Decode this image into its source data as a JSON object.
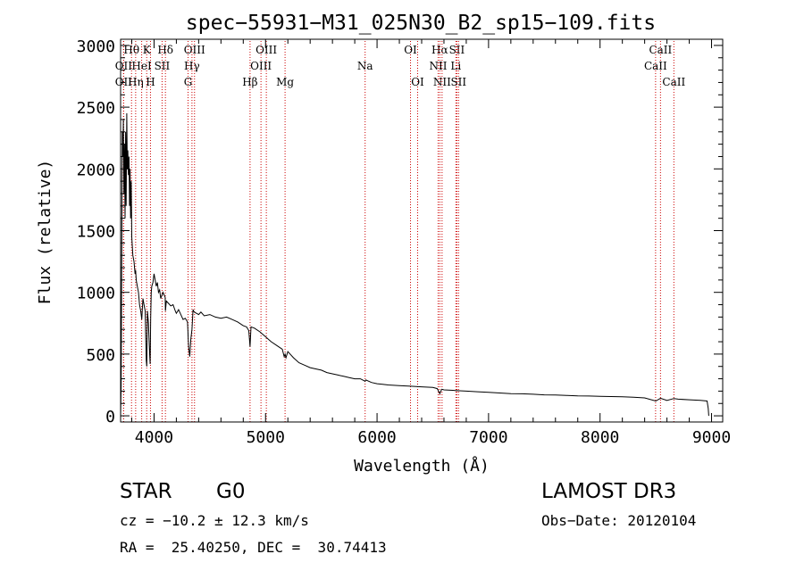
{
  "chart_data": {
    "type": "line",
    "title": "spec−55931−M31_025N30_B2_sp15−109.fits",
    "xlabel": "Wavelength (Å)",
    "ylabel": "Flux (relative)",
    "xlim": [
      3700,
      9100
    ],
    "ylim": [
      -50,
      3050
    ],
    "xticks": [
      4000,
      5000,
      6000,
      7000,
      8000,
      9000
    ],
    "yticks": [
      0,
      500,
      1000,
      1500,
      2000,
      2500,
      3000
    ],
    "grid": false,
    "series": [
      {
        "name": "spectrum",
        "x": [
          3700,
          3705,
          3710,
          3715,
          3720,
          3725,
          3730,
          3735,
          3740,
          3745,
          3750,
          3755,
          3760,
          3765,
          3770,
          3775,
          3780,
          3785,
          3790,
          3795,
          3800,
          3810,
          3820,
          3830,
          3835,
          3840,
          3850,
          3860,
          3870,
          3880,
          3890,
          3900,
          3910,
          3920,
          3930,
          3935,
          3940,
          3950,
          3960,
          3965,
          3970,
          3975,
          3980,
          3990,
          4000,
          4010,
          4020,
          4030,
          4040,
          4050,
          4060,
          4080,
          4100,
          4102,
          4110,
          4130,
          4150,
          4170,
          4190,
          4200,
          4220,
          4240,
          4260,
          4280,
          4300,
          4310,
          4320,
          4330,
          4340,
          4350,
          4360,
          4380,
          4400,
          4420,
          4450,
          4500,
          4550,
          4600,
          4650,
          4700,
          4750,
          4800,
          4830,
          4850,
          4861,
          4870,
          4900,
          4950,
          5000,
          5050,
          5100,
          5150,
          5167,
          5175,
          5183,
          5200,
          5250,
          5300,
          5350,
          5400,
          5450,
          5500,
          5550,
          5600,
          5650,
          5700,
          5750,
          5800,
          5850,
          5893,
          5900,
          5950,
          6000,
          6050,
          6100,
          6200,
          6300,
          6400,
          6500,
          6540,
          6563,
          6580,
          6600,
          6700,
          6800,
          6900,
          7000,
          7100,
          7200,
          7300,
          7400,
          7500,
          7600,
          7700,
          7800,
          7900,
          8000,
          8100,
          8200,
          8300,
          8400,
          8500,
          8542,
          8600,
          8662,
          8700,
          8800,
          8900,
          8960,
          8970,
          8975
        ],
        "values": [
          0,
          250,
          1200,
          2300,
          2100,
          2400,
          1800,
          2200,
          1600,
          2300,
          1700,
          2450,
          2000,
          2150,
          1950,
          2100,
          1700,
          2000,
          1600,
          1900,
          1450,
          1300,
          1250,
          1150,
          1180,
          1100,
          1050,
          1000,
          900,
          850,
          780,
          950,
          900,
          850,
          450,
          400,
          850,
          750,
          500,
          420,
          800,
          1000,
          1050,
          1080,
          1150,
          1100,
          1050,
          1080,
          1000,
          1020,
          950,
          1000,
          960,
          850,
          930,
          910,
          890,
          900,
          850,
          830,
          860,
          820,
          780,
          790,
          760,
          560,
          480,
          620,
          700,
          860,
          840,
          830,
          820,
          840,
          810,
          820,
          800,
          790,
          800,
          780,
          760,
          730,
          720,
          690,
          560,
          720,
          710,
          680,
          640,
          600,
          570,
          540,
          480,
          500,
          470,
          520,
          470,
          430,
          410,
          390,
          380,
          370,
          350,
          340,
          330,
          320,
          310,
          300,
          300,
          280,
          290,
          270,
          260,
          255,
          250,
          245,
          240,
          235,
          230,
          220,
          180,
          215,
          210,
          205,
          200,
          195,
          190,
          185,
          180,
          178,
          175,
          170,
          168,
          165,
          162,
          160,
          158,
          156,
          154,
          150,
          145,
          120,
          142,
          125,
          140,
          135,
          130,
          125,
          120,
          60,
          0
        ]
      }
    ],
    "line_markers": [
      {
        "label": "Hθ",
        "x": 3798,
        "row": 0
      },
      {
        "label": "K",
        "x": 3934,
        "row": 0
      },
      {
        "label": "Hδ",
        "x": 4102,
        "row": 0
      },
      {
        "label": "OIII",
        "x": 4363,
        "row": 0
      },
      {
        "label": "OIII",
        "x": 5007,
        "row": 0
      },
      {
        "label": "OI",
        "x": 6300,
        "row": 0
      },
      {
        "label": "Hα",
        "x": 6563,
        "row": 0
      },
      {
        "label": "SII",
        "x": 6716,
        "row": 0
      },
      {
        "label": "CaII",
        "x": 8542,
        "row": 0
      },
      {
        "label": "OII",
        "x": 3727,
        "row": 1
      },
      {
        "label": "HeI",
        "x": 3889,
        "row": 1
      },
      {
        "label": "SII",
        "x": 4072,
        "row": 1
      },
      {
        "label": "Hγ",
        "x": 4340,
        "row": 1
      },
      {
        "label": "OIII",
        "x": 4959,
        "row": 1
      },
      {
        "label": "Na",
        "x": 5893,
        "row": 1
      },
      {
        "label": "NII",
        "x": 6548,
        "row": 1
      },
      {
        "label": "Li",
        "x": 6707,
        "row": 1
      },
      {
        "label": "CaII",
        "x": 8498,
        "row": 1
      },
      {
        "label": "OII",
        "x": 3727,
        "row": 2
      },
      {
        "label": "Hη",
        "x": 3835,
        "row": 2
      },
      {
        "label": "H",
        "x": 3968,
        "row": 2
      },
      {
        "label": "G",
        "x": 4305,
        "row": 2
      },
      {
        "label": "Hβ",
        "x": 4861,
        "row": 2
      },
      {
        "label": "Mg",
        "x": 5175,
        "row": 2
      },
      {
        "label": "OI",
        "x": 6364,
        "row": 2
      },
      {
        "label": "NII",
        "x": 6583,
        "row": 2
      },
      {
        "label": "SII",
        "x": 6731,
        "row": 2
      },
      {
        "label": "CaII",
        "x": 8662,
        "row": 2
      }
    ],
    "line_marker_color": "#cc0000"
  },
  "info": {
    "object_class": "STAR",
    "subclass": "G0",
    "survey": "LAMOST DR3",
    "redshift": "cz = −10.2 ± 12.3 km/s",
    "obs_date": "Obs−Date: 20120104",
    "coords": "RA =  25.40250, DEC =  30.74413"
  }
}
